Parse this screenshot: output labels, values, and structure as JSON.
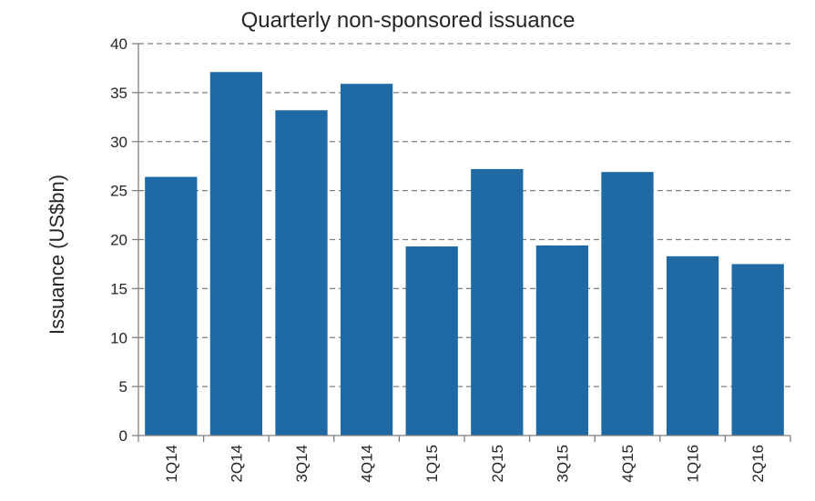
{
  "chart_data": {
    "type": "bar",
    "title": "Quarterly non-sponsored issuance",
    "xlabel": "",
    "ylabel": "Issuance (US$bn)",
    "categories": [
      "1Q14",
      "2Q14",
      "3Q14",
      "4Q14",
      "1Q15",
      "2Q15",
      "3Q15",
      "4Q15",
      "1Q16",
      "2Q16"
    ],
    "values": [
      26.4,
      37.1,
      33.2,
      35.9,
      19.3,
      27.2,
      19.4,
      26.9,
      18.3,
      17.5
    ],
    "ylim": [
      0,
      40
    ],
    "yticks": [
      0,
      5,
      10,
      15,
      20,
      25,
      30,
      35,
      40
    ],
    "grid": true,
    "legend": "none",
    "colors": {
      "bar": "#1f6aa4",
      "grid": "#7f7f7f",
      "text": "#262626"
    }
  }
}
